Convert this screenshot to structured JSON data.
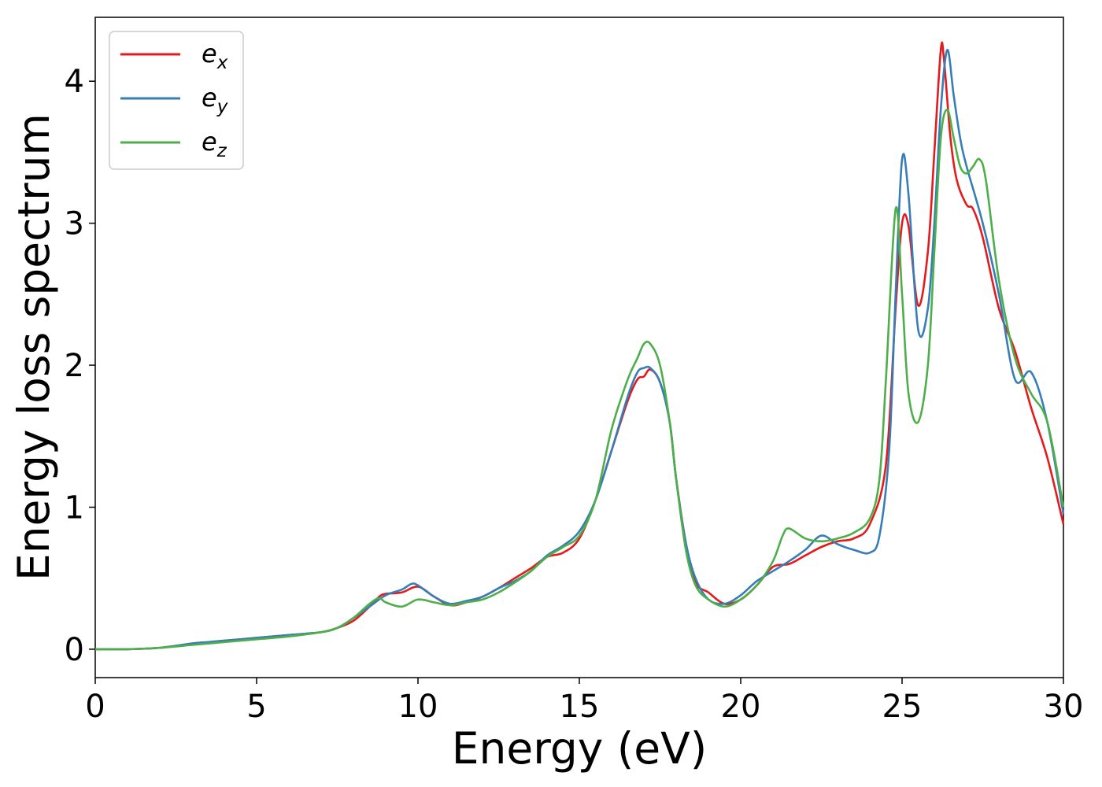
{
  "chart_data": {
    "type": "line",
    "title": "",
    "xlabel": "Energy (eV)",
    "ylabel": "Energy loss spectrum",
    "xlim": [
      0,
      30
    ],
    "ylim": [
      -0.2,
      4.45
    ],
    "xticks": [
      0,
      5,
      10,
      15,
      20,
      25,
      30
    ],
    "xtick_labels": [
      "0",
      "5",
      "10",
      "15",
      "20",
      "25",
      "30"
    ],
    "yticks": [
      0,
      1,
      2,
      3,
      4
    ],
    "ytick_labels": [
      "0",
      "1",
      "2",
      "3",
      "4"
    ],
    "grid": false,
    "legend_position": "top-left",
    "series": [
      {
        "name": "e_x",
        "label_base": "e",
        "label_sub": "x",
        "color": "#e41a1c",
        "x": [
          0,
          1,
          2,
          3,
          3.5,
          4,
          5,
          6,
          7,
          7.5,
          8,
          8.5,
          8.8,
          9,
          9.5,
          10,
          10.5,
          11,
          11.5,
          12,
          12.5,
          13,
          13.5,
          14,
          14.5,
          15,
          15.5,
          16,
          16.5,
          16.8,
          17,
          17.2,
          17.5,
          17.8,
          18,
          18.3,
          18.6,
          19,
          19.5,
          20,
          20.5,
          21,
          21.5,
          22,
          22.5,
          23,
          23.5,
          24,
          24.5,
          24.8,
          25,
          25.2,
          25.5,
          25.8,
          26,
          26.2,
          26.3,
          26.5,
          26.7,
          27,
          27.2,
          27.5,
          28,
          28.5,
          29,
          29.5,
          30
        ],
        "y": [
          0,
          0,
          0.01,
          0.04,
          0.05,
          0.06,
          0.08,
          0.1,
          0.12,
          0.15,
          0.2,
          0.3,
          0.37,
          0.39,
          0.4,
          0.44,
          0.37,
          0.31,
          0.33,
          0.37,
          0.43,
          0.5,
          0.57,
          0.65,
          0.68,
          0.78,
          1.05,
          1.4,
          1.75,
          1.9,
          1.92,
          1.97,
          1.88,
          1.6,
          1.2,
          0.75,
          0.47,
          0.4,
          0.32,
          0.35,
          0.45,
          0.58,
          0.6,
          0.66,
          0.72,
          0.76,
          0.78,
          0.88,
          1.3,
          2.4,
          3.0,
          2.98,
          2.42,
          2.8,
          3.5,
          4.22,
          4.15,
          3.6,
          3.3,
          3.13,
          3.1,
          2.9,
          2.4,
          2.1,
          1.7,
          1.35,
          0.88
        ]
      },
      {
        "name": "e_y",
        "label_base": "e",
        "label_sub": "y",
        "color": "#377eb8",
        "x": [
          0,
          1,
          2,
          3,
          3.5,
          4,
          5,
          6,
          7,
          7.5,
          8,
          8.5,
          9,
          9.5,
          9.8,
          10,
          10.5,
          11,
          11.5,
          12,
          12.5,
          13,
          13.5,
          14,
          14.5,
          15,
          15.5,
          16,
          16.5,
          16.8,
          17,
          17.2,
          17.5,
          17.8,
          18,
          18.3,
          18.6,
          19,
          19.5,
          20,
          20.5,
          21,
          21.5,
          22,
          22.5,
          23,
          23.5,
          24,
          24.3,
          24.6,
          24.8,
          25,
          25.2,
          25.5,
          25.8,
          26,
          26.2,
          26.4,
          26.6,
          26.8,
          27,
          27.5,
          28,
          28.5,
          29,
          29.5,
          30
        ],
        "y": [
          0,
          0,
          0.01,
          0.04,
          0.05,
          0.06,
          0.08,
          0.1,
          0.12,
          0.15,
          0.22,
          0.3,
          0.38,
          0.42,
          0.46,
          0.45,
          0.37,
          0.32,
          0.34,
          0.37,
          0.43,
          0.48,
          0.55,
          0.66,
          0.73,
          0.83,
          1.05,
          1.4,
          1.78,
          1.95,
          1.98,
          1.98,
          1.88,
          1.6,
          1.2,
          0.75,
          0.5,
          0.35,
          0.32,
          0.38,
          0.48,
          0.55,
          0.62,
          0.7,
          0.8,
          0.74,
          0.7,
          0.68,
          0.8,
          1.4,
          2.5,
          3.45,
          3.2,
          2.25,
          2.4,
          3.0,
          3.8,
          4.22,
          3.9,
          3.6,
          3.4,
          3.0,
          2.5,
          1.9,
          1.95,
          1.6,
          0.95
        ]
      },
      {
        "name": "e_z",
        "label_base": "e",
        "label_sub": "z",
        "color": "#4daf4a",
        "x": [
          0,
          1,
          2,
          3,
          3.5,
          4,
          5,
          6,
          7,
          7.5,
          8,
          8.5,
          8.8,
          9,
          9.5,
          10,
          10.5,
          11,
          11.5,
          12,
          12.5,
          13,
          13.5,
          14,
          14.5,
          15,
          15.5,
          16,
          16.5,
          16.8,
          17,
          17.2,
          17.5,
          17.8,
          18,
          18.3,
          18.6,
          19,
          19.5,
          20,
          20.5,
          21,
          21.3,
          21.5,
          22,
          22.5,
          23,
          23.5,
          24,
          24.3,
          24.5,
          24.8,
          25,
          25.2,
          25.5,
          25.8,
          26,
          26.2,
          26.4,
          26.6,
          26.8,
          27,
          27.2,
          27.4,
          27.6,
          28,
          28.5,
          29,
          29.5,
          30
        ],
        "y": [
          0,
          0,
          0.01,
          0.03,
          0.04,
          0.05,
          0.07,
          0.09,
          0.12,
          0.15,
          0.22,
          0.32,
          0.36,
          0.33,
          0.3,
          0.35,
          0.33,
          0.31,
          0.33,
          0.35,
          0.4,
          0.47,
          0.55,
          0.65,
          0.72,
          0.8,
          1.05,
          1.55,
          1.9,
          2.05,
          2.15,
          2.15,
          2.0,
          1.6,
          1.2,
          0.7,
          0.45,
          0.35,
          0.3,
          0.35,
          0.45,
          0.62,
          0.8,
          0.85,
          0.78,
          0.76,
          0.78,
          0.82,
          0.92,
          1.2,
          1.9,
          3.1,
          2.5,
          1.8,
          1.6,
          2.0,
          2.8,
          3.6,
          3.8,
          3.6,
          3.4,
          3.35,
          3.4,
          3.45,
          3.3,
          2.6,
          2.05,
          1.8,
          1.6,
          1.0
        ]
      }
    ]
  }
}
